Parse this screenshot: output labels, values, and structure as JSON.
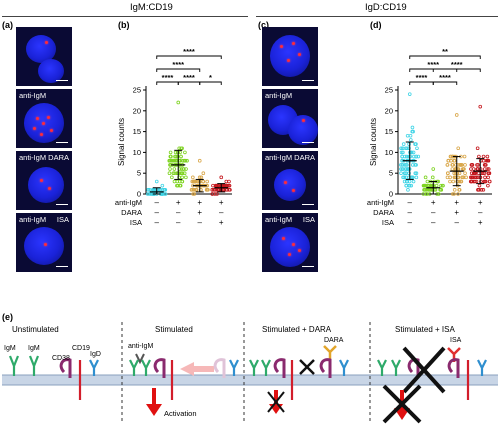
{
  "headers": {
    "left": "IgM:CD19",
    "right": "IgD:CD19"
  },
  "panel_labels": {
    "a": "(a)",
    "b": "(b)",
    "c": "(c)",
    "d": "(d)",
    "e": "(e)"
  },
  "micrograph_labels": {
    "anti_igm": "anti-IgM",
    "dara": "DARA",
    "isa": "ISA"
  },
  "chart_axis": {
    "ylabel": "Signal counts",
    "row_labels": [
      "anti-IgM",
      "DARA",
      "ISA"
    ]
  },
  "chart_data": [
    {
      "type": "scatter",
      "panel": "(b)",
      "ylabel": "Signal counts",
      "ylim": [
        0,
        25
      ],
      "yticks": [
        0,
        5,
        10,
        15,
        20,
        25
      ],
      "groups": [
        {
          "anti_igm": "–",
          "dara": "–",
          "isa": "–",
          "color": "#3fd4e6",
          "mean": 0.5,
          "sd": 1,
          "max": 3
        },
        {
          "anti_igm": "+",
          "dara": "–",
          "isa": "–",
          "color": "#7ed321",
          "mean": 7,
          "sd": 3.5,
          "max": 22
        },
        {
          "anti_igm": "+",
          "dara": "+",
          "isa": "–",
          "color": "#d9a74a",
          "mean": 2,
          "sd": 1.5,
          "max": 8
        },
        {
          "anti_igm": "+",
          "dara": "–",
          "isa": "+",
          "color": "#c4161c",
          "mean": 1.5,
          "sd": 1,
          "max": 4
        }
      ],
      "row_marks": {
        "anti_igm": [
          "–",
          "+",
          "+",
          "+"
        ],
        "dara": [
          "–",
          "–",
          "+",
          "–"
        ],
        "isa": [
          "–",
          "–",
          "–",
          "+"
        ]
      },
      "significance": [
        {
          "from": 1,
          "to": 4,
          "label": "****"
        },
        {
          "from": 1,
          "to": 3,
          "label": "****"
        },
        {
          "from": 1,
          "to": 2,
          "label": "****"
        },
        {
          "from": 2,
          "to": 3,
          "label": "****"
        },
        {
          "from": 3,
          "to": 4,
          "label": "*"
        }
      ]
    },
    {
      "type": "scatter",
      "panel": "(d)",
      "ylabel": "Signal counts",
      "ylim": [
        0,
        25
      ],
      "yticks": [
        0,
        5,
        10,
        15,
        20,
        25
      ],
      "groups": [
        {
          "anti_igm": "–",
          "dara": "–",
          "isa": "–",
          "color": "#3fd4e6",
          "mean": 8,
          "sd": 4.5,
          "max": 24
        },
        {
          "anti_igm": "+",
          "dara": "–",
          "isa": "–",
          "color": "#7ed321",
          "mean": 1.5,
          "sd": 1.5,
          "max": 6
        },
        {
          "anti_igm": "+",
          "dara": "+",
          "isa": "–",
          "color": "#d9a74a",
          "mean": 5.5,
          "sd": 3.5,
          "max": 19
        },
        {
          "anti_igm": "+",
          "dara": "–",
          "isa": "+",
          "color": "#c4161c",
          "mean": 5.5,
          "sd": 3,
          "max": 21
        }
      ],
      "row_marks": {
        "anti_igm": [
          "–",
          "+",
          "+",
          "+"
        ],
        "dara": [
          "–",
          "–",
          "+",
          "–"
        ],
        "isa": [
          "–",
          "–",
          "–",
          "+"
        ]
      },
      "significance": [
        {
          "from": 1,
          "to": 4,
          "label": "**"
        },
        {
          "from": 1,
          "to": 3,
          "label": "****"
        },
        {
          "from": 2,
          "to": 4,
          "label": "****"
        },
        {
          "from": 1,
          "to": 2,
          "label": "****"
        },
        {
          "from": 2,
          "to": 3,
          "label": "****"
        }
      ]
    }
  ],
  "diagram": {
    "stages": [
      "Unstimulated",
      "Stimulated",
      "Stimulated + DARA",
      "Stimulated + ISA"
    ],
    "labels": {
      "igm1": "IgM",
      "igm2": "IgM",
      "cd19": "CD19",
      "igd": "IgD",
      "cd38": "CD38",
      "anti_igm": "anti-IgM",
      "activation": "Activation",
      "dara": "DARA",
      "isa": "ISA"
    },
    "colors": {
      "igm": "#2eaa6a",
      "cd19": "#d21e2b",
      "igd": "#2f8fcf",
      "cd38": "#8a2a6e",
      "anti": "#555555",
      "dara": "#e2a52a",
      "isa": "#e03030",
      "membrane": "#b9c9dc"
    }
  }
}
